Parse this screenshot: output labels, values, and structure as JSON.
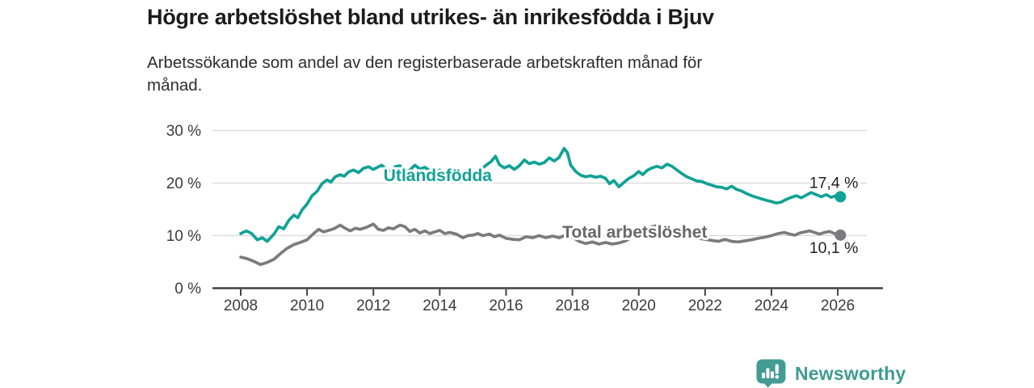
{
  "header": {
    "title": "Högre arbetslöshet bland utrikes- än inrikesfödda i Bjuv",
    "subtitle": "Arbetssökande som andel av den registerbaserade arbetskraften månad för månad."
  },
  "branding": {
    "name": "Newsworthy",
    "color": "#3f9b94"
  },
  "chart_data": {
    "type": "line",
    "title": "Högre arbetslöshet bland utrikes- än inrikesfödda i Bjuv",
    "subtitle": "Arbetssökande som andel av den registerbaserade arbetskraften månad för månad.",
    "unit": "%",
    "grid": "horizontal",
    "legend_position": "inline-labels",
    "x_axis": {
      "ticks": [
        2008,
        2010,
        2012,
        2014,
        2016,
        2018,
        2020,
        2022,
        2024,
        2026
      ],
      "range": [
        2007.15,
        2026.9
      ]
    },
    "y_axis": {
      "ticks": [
        {
          "value": 0,
          "label": "0 %"
        },
        {
          "value": 10,
          "label": "10 %"
        },
        {
          "value": 20,
          "label": "20 %"
        },
        {
          "value": 30,
          "label": "30 %"
        }
      ],
      "range": [
        0,
        32
      ]
    },
    "colors": {
      "gridline": "#d8d8d8",
      "axis": "#414141",
      "tick_text": "#3b3b3b",
      "value_text": "#222222"
    },
    "series": [
      {
        "name": "Utlandsfödda",
        "color": "#11a296",
        "end_value": 17.4,
        "inline_label": {
          "text": "Utlandsfödda",
          "year": 2013.94,
          "value": 20.4,
          "anchor": "middle"
        },
        "value_label": {
          "text": "17,4 %",
          "year": 2026.62,
          "value": 19.05,
          "anchor": "end"
        },
        "points": [
          [
            2008.0,
            10.4
          ],
          [
            2008.17,
            10.9
          ],
          [
            2008.33,
            10.4
          ],
          [
            2008.5,
            9.2
          ],
          [
            2008.65,
            9.6
          ],
          [
            2008.8,
            8.9
          ],
          [
            2009.0,
            10.3
          ],
          [
            2009.15,
            11.7
          ],
          [
            2009.3,
            11.3
          ],
          [
            2009.45,
            12.9
          ],
          [
            2009.6,
            13.9
          ],
          [
            2009.72,
            13.4
          ],
          [
            2009.85,
            14.9
          ],
          [
            2010.0,
            16.0
          ],
          [
            2010.15,
            17.6
          ],
          [
            2010.3,
            18.4
          ],
          [
            2010.45,
            19.9
          ],
          [
            2010.6,
            20.6
          ],
          [
            2010.72,
            20.2
          ],
          [
            2010.85,
            21.2
          ],
          [
            2011.0,
            21.6
          ],
          [
            2011.12,
            21.3
          ],
          [
            2011.25,
            22.1
          ],
          [
            2011.4,
            22.5
          ],
          [
            2011.55,
            22.0
          ],
          [
            2011.7,
            22.8
          ],
          [
            2011.85,
            23.1
          ],
          [
            2012.0,
            22.6
          ],
          [
            2012.12,
            23.0
          ],
          [
            2012.25,
            23.4
          ],
          [
            2012.4,
            22.6
          ],
          [
            2012.52,
            22.2
          ],
          [
            2012.65,
            23.1
          ],
          [
            2012.8,
            23.3
          ],
          [
            2012.95,
            22.0
          ],
          [
            2013.1,
            22.5
          ],
          [
            2013.25,
            23.4
          ],
          [
            2013.4,
            22.7
          ],
          [
            2013.55,
            23.0
          ],
          [
            2013.7,
            22.4
          ],
          [
            2013.85,
            22.1
          ],
          [
            2014.0,
            22.5
          ],
          [
            2014.2,
            21.8
          ],
          [
            2014.4,
            21.6
          ],
          [
            2014.6,
            22.1
          ],
          [
            2014.8,
            21.8
          ],
          [
            2015.0,
            22.1
          ],
          [
            2015.2,
            22.4
          ],
          [
            2015.4,
            23.4
          ],
          [
            2015.55,
            24.1
          ],
          [
            2015.68,
            25.1
          ],
          [
            2015.8,
            23.5
          ],
          [
            2015.95,
            22.9
          ],
          [
            2016.1,
            23.3
          ],
          [
            2016.25,
            22.6
          ],
          [
            2016.4,
            23.3
          ],
          [
            2016.55,
            24.4
          ],
          [
            2016.7,
            23.7
          ],
          [
            2016.85,
            24.0
          ],
          [
            2017.0,
            23.6
          ],
          [
            2017.15,
            23.9
          ],
          [
            2017.3,
            24.8
          ],
          [
            2017.45,
            24.2
          ],
          [
            2017.6,
            24.9
          ],
          [
            2017.75,
            26.6
          ],
          [
            2017.85,
            25.8
          ],
          [
            2017.95,
            23.4
          ],
          [
            2018.1,
            22.2
          ],
          [
            2018.25,
            21.5
          ],
          [
            2018.4,
            21.2
          ],
          [
            2018.55,
            21.4
          ],
          [
            2018.7,
            21.1
          ],
          [
            2018.85,
            21.3
          ],
          [
            2019.0,
            20.9
          ],
          [
            2019.12,
            19.9
          ],
          [
            2019.25,
            20.5
          ],
          [
            2019.4,
            19.3
          ],
          [
            2019.55,
            20.1
          ],
          [
            2019.7,
            20.9
          ],
          [
            2019.85,
            21.4
          ],
          [
            2020.0,
            22.2
          ],
          [
            2020.12,
            21.6
          ],
          [
            2020.25,
            22.4
          ],
          [
            2020.4,
            22.9
          ],
          [
            2020.55,
            23.2
          ],
          [
            2020.7,
            22.9
          ],
          [
            2020.85,
            23.6
          ],
          [
            2021.0,
            23.2
          ],
          [
            2021.15,
            22.5
          ],
          [
            2021.3,
            21.8
          ],
          [
            2021.45,
            21.2
          ],
          [
            2021.6,
            20.8
          ],
          [
            2021.75,
            20.4
          ],
          [
            2021.9,
            20.3
          ],
          [
            2022.05,
            19.9
          ],
          [
            2022.2,
            19.6
          ],
          [
            2022.35,
            19.3
          ],
          [
            2022.5,
            19.2
          ],
          [
            2022.65,
            18.9
          ],
          [
            2022.8,
            19.4
          ],
          [
            2022.95,
            18.8
          ],
          [
            2023.1,
            18.5
          ],
          [
            2023.25,
            18.0
          ],
          [
            2023.4,
            17.6
          ],
          [
            2023.55,
            17.3
          ],
          [
            2023.7,
            17.0
          ],
          [
            2023.85,
            16.7
          ],
          [
            2024.0,
            16.5
          ],
          [
            2024.15,
            16.2
          ],
          [
            2024.3,
            16.4
          ],
          [
            2024.45,
            16.9
          ],
          [
            2024.6,
            17.3
          ],
          [
            2024.75,
            17.6
          ],
          [
            2024.9,
            17.2
          ],
          [
            2025.05,
            17.7
          ],
          [
            2025.2,
            18.2
          ],
          [
            2025.35,
            17.8
          ],
          [
            2025.5,
            17.4
          ],
          [
            2025.65,
            17.8
          ],
          [
            2025.8,
            17.3
          ],
          [
            2025.95,
            17.6
          ],
          [
            2026.08,
            17.4
          ]
        ]
      },
      {
        "name": "Total arbetslöshet",
        "color": "#7b7b7f",
        "end_value": 10.1,
        "inline_label": {
          "text": "Total arbetslöshet",
          "year": 2019.88,
          "value": 9.6,
          "anchor": "middle",
          "color": "#67676c"
        },
        "value_label": {
          "text": "10,1 %",
          "year": 2026.62,
          "value": 6.7,
          "anchor": "end"
        },
        "points": [
          [
            2008.0,
            5.9
          ],
          [
            2008.2,
            5.6
          ],
          [
            2008.4,
            5.1
          ],
          [
            2008.6,
            4.5
          ],
          [
            2008.8,
            4.9
          ],
          [
            2009.0,
            5.5
          ],
          [
            2009.2,
            6.6
          ],
          [
            2009.4,
            7.6
          ],
          [
            2009.6,
            8.3
          ],
          [
            2009.8,
            8.7
          ],
          [
            2010.0,
            9.2
          ],
          [
            2010.2,
            10.4
          ],
          [
            2010.35,
            11.2
          ],
          [
            2010.5,
            10.7
          ],
          [
            2010.65,
            11.0
          ],
          [
            2010.8,
            11.3
          ],
          [
            2011.0,
            12.0
          ],
          [
            2011.15,
            11.4
          ],
          [
            2011.3,
            10.9
          ],
          [
            2011.45,
            11.4
          ],
          [
            2011.6,
            11.2
          ],
          [
            2011.8,
            11.6
          ],
          [
            2012.0,
            12.2
          ],
          [
            2012.15,
            11.2
          ],
          [
            2012.3,
            11.0
          ],
          [
            2012.45,
            11.5
          ],
          [
            2012.6,
            11.3
          ],
          [
            2012.8,
            12.0
          ],
          [
            2012.95,
            11.7
          ],
          [
            2013.1,
            10.8
          ],
          [
            2013.25,
            11.2
          ],
          [
            2013.4,
            10.5
          ],
          [
            2013.55,
            10.9
          ],
          [
            2013.7,
            10.4
          ],
          [
            2013.85,
            10.7
          ],
          [
            2014.0,
            11.0
          ],
          [
            2014.15,
            10.4
          ],
          [
            2014.3,
            10.6
          ],
          [
            2014.5,
            10.3
          ],
          [
            2014.7,
            9.6
          ],
          [
            2014.85,
            10.0
          ],
          [
            2015.0,
            10.1
          ],
          [
            2015.15,
            10.4
          ],
          [
            2015.3,
            10.0
          ],
          [
            2015.5,
            10.3
          ],
          [
            2015.65,
            9.8
          ],
          [
            2015.8,
            10.1
          ],
          [
            2016.0,
            9.5
          ],
          [
            2016.2,
            9.3
          ],
          [
            2016.4,
            9.2
          ],
          [
            2016.6,
            9.8
          ],
          [
            2016.8,
            9.6
          ],
          [
            2017.0,
            10.0
          ],
          [
            2017.2,
            9.6
          ],
          [
            2017.4,
            9.9
          ],
          [
            2017.6,
            9.6
          ],
          [
            2017.8,
            10.1
          ],
          [
            2018.0,
            9.7
          ],
          [
            2018.2,
            8.9
          ],
          [
            2018.4,
            8.5
          ],
          [
            2018.6,
            8.8
          ],
          [
            2018.8,
            8.4
          ],
          [
            2019.0,
            8.7
          ],
          [
            2019.2,
            8.4
          ],
          [
            2019.4,
            8.6
          ],
          [
            2019.6,
            9.0
          ],
          [
            2019.8,
            9.7
          ],
          [
            2020.0,
            10.3
          ],
          [
            2020.2,
            11.0
          ],
          [
            2020.4,
            11.7
          ],
          [
            2020.6,
            12.0
          ],
          [
            2020.8,
            11.8
          ],
          [
            2021.0,
            11.3
          ],
          [
            2021.2,
            10.7
          ],
          [
            2021.4,
            10.3
          ],
          [
            2021.6,
            9.9
          ],
          [
            2021.8,
            9.5
          ],
          [
            2022.0,
            9.3
          ],
          [
            2022.2,
            9.1
          ],
          [
            2022.4,
            8.9
          ],
          [
            2022.6,
            9.3
          ],
          [
            2022.8,
            8.9
          ],
          [
            2023.0,
            8.8
          ],
          [
            2023.2,
            9.0
          ],
          [
            2023.4,
            9.2
          ],
          [
            2023.6,
            9.5
          ],
          [
            2023.8,
            9.7
          ],
          [
            2024.0,
            10.0
          ],
          [
            2024.2,
            10.4
          ],
          [
            2024.4,
            10.6
          ],
          [
            2024.55,
            10.3
          ],
          [
            2024.7,
            10.1
          ],
          [
            2024.85,
            10.5
          ],
          [
            2025.0,
            10.7
          ],
          [
            2025.15,
            10.9
          ],
          [
            2025.3,
            10.6
          ],
          [
            2025.45,
            10.3
          ],
          [
            2025.6,
            10.6
          ],
          [
            2025.75,
            10.8
          ],
          [
            2025.9,
            10.4
          ],
          [
            2026.08,
            10.1
          ]
        ]
      }
    ]
  }
}
